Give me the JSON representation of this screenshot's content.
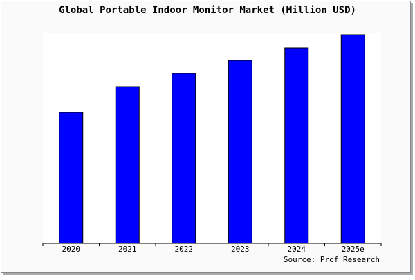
{
  "chart_data": {
    "type": "bar",
    "title": "Global Portable Indoor Monitor Market (Million USD)",
    "categories": [
      "2020",
      "2021",
      "2022",
      "2023",
      "2024",
      "2025e"
    ],
    "values": [
      189,
      226,
      245,
      264,
      282,
      301
    ],
    "color": "#0000ff",
    "ylim": [
      0,
      303
    ],
    "source": "Source: Prof Research"
  }
}
